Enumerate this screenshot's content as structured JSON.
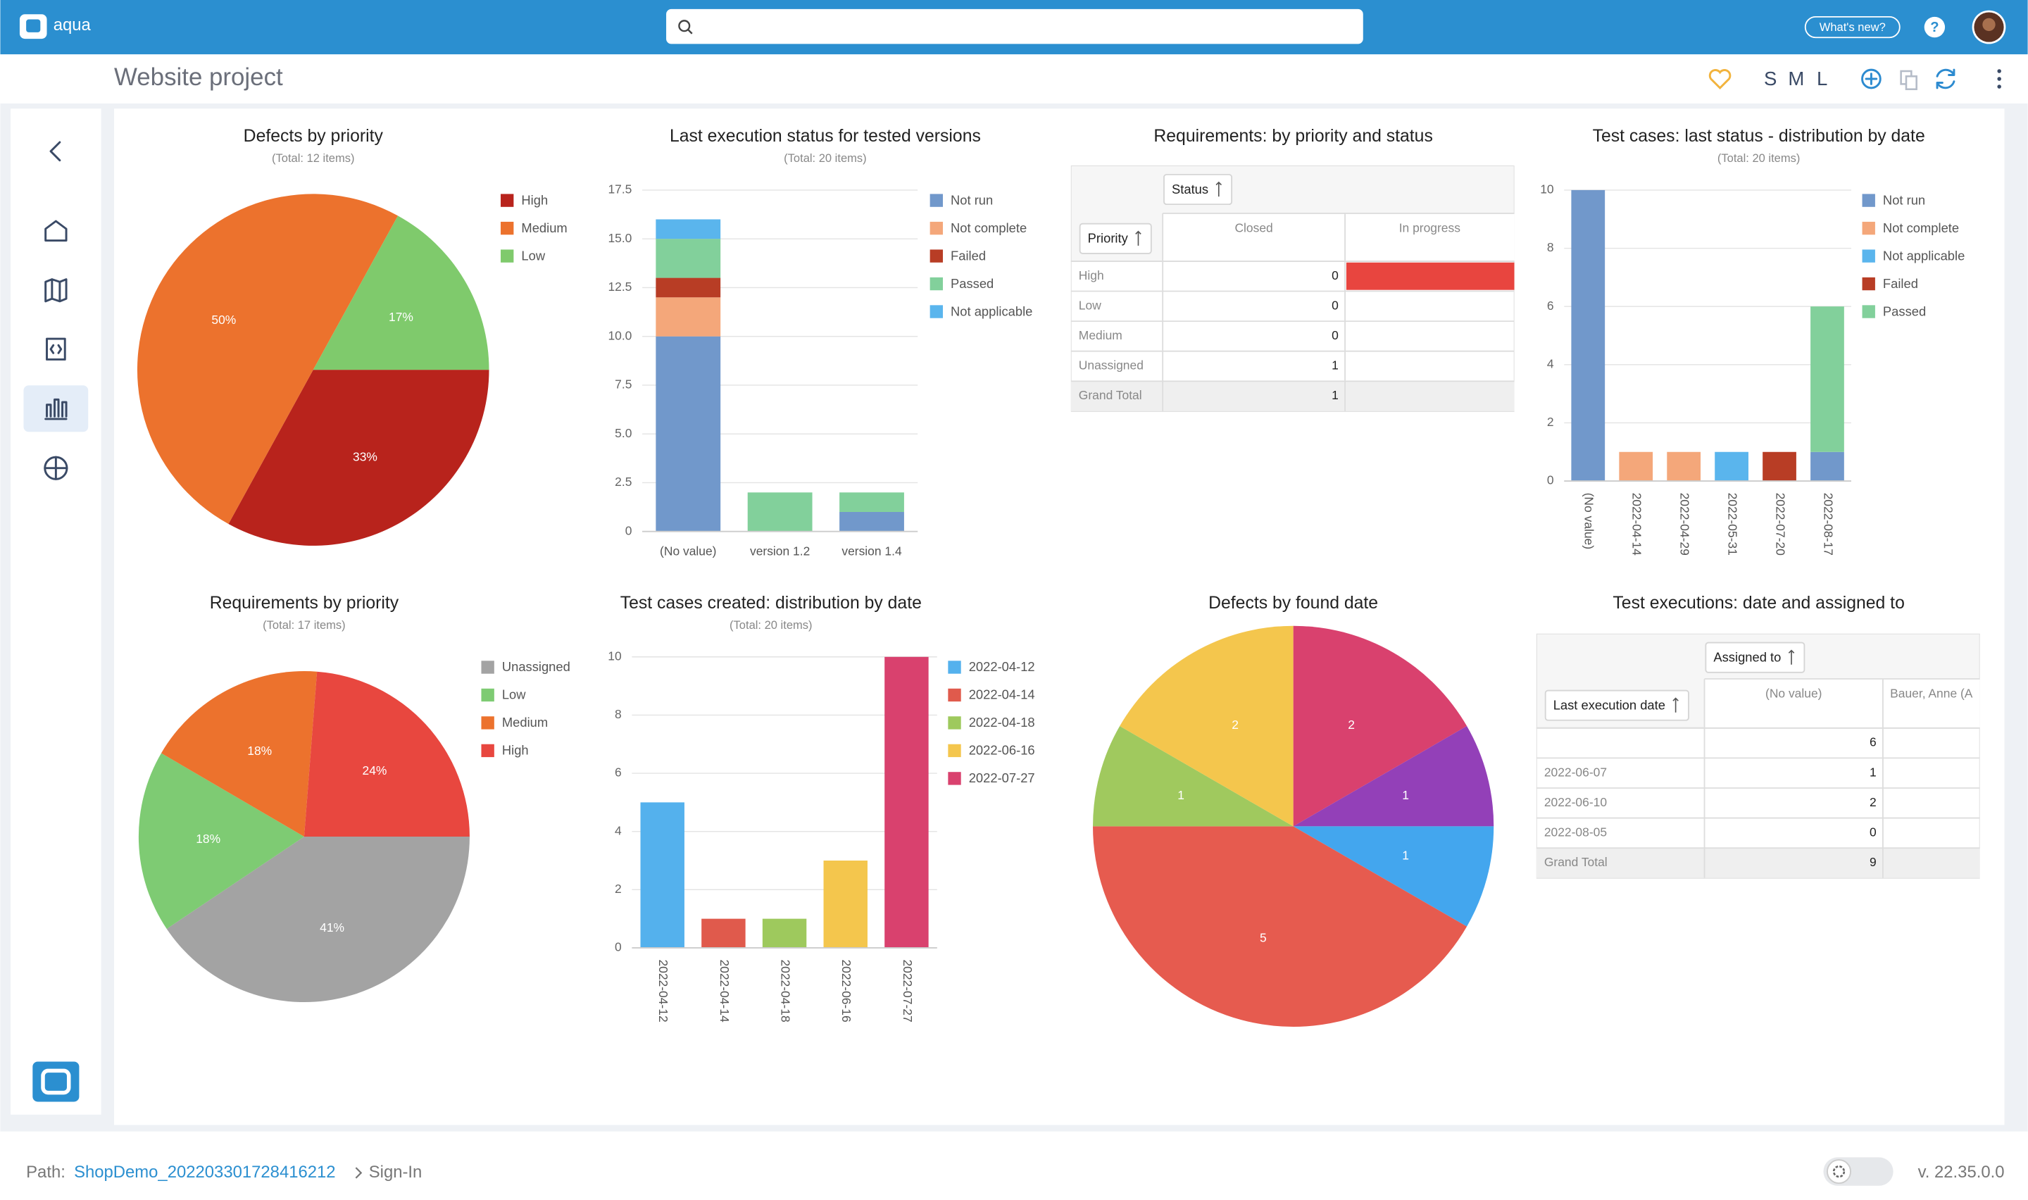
{
  "app": {
    "logo": "aqua",
    "whats_new": "What's new?",
    "help": "?",
    "project_title": "Website project",
    "sizes": [
      "S",
      "M",
      "L"
    ],
    "path_label": "Path:",
    "path_link": "ShopDemo_202203301728416212",
    "path_tail": "Sign-In",
    "version": "v. 22.35.0.0"
  },
  "chart_data": [
    {
      "type": "pie",
      "title": "Defects by priority",
      "subtitle": "(Total: 12 items)",
      "categories": [
        "High",
        "Medium",
        "Low"
      ],
      "values": [
        33,
        50,
        17
      ],
      "value_labels": [
        "33%",
        "50%",
        "17%"
      ],
      "colors": [
        "#b8231c",
        "#ec722d",
        "#7fca6c"
      ],
      "legend": "right"
    },
    {
      "type": "bar",
      "stacked": true,
      "title": "Last execution status for tested versions",
      "subtitle": "(Total: 20 items)",
      "categories": [
        "(No value)",
        "version 1.2",
        "version 1.4"
      ],
      "series": [
        {
          "name": "Not run",
          "color": "#7198cb",
          "values": [
            10,
            0,
            1
          ]
        },
        {
          "name": "Not complete",
          "color": "#f4a77a",
          "values": [
            2,
            0,
            0
          ]
        },
        {
          "name": "Failed",
          "color": "#b83d25",
          "values": [
            1,
            0,
            0
          ]
        },
        {
          "name": "Passed",
          "color": "#82d09b",
          "values": [
            2,
            2,
            1
          ]
        },
        {
          "name": "Not applicable",
          "color": "#5ab5ed",
          "values": [
            1,
            0,
            0
          ]
        }
      ],
      "ylim": [
        0,
        17.5
      ],
      "yticks": [
        0,
        2.5,
        {
          "value": 5,
          "label": "5.0"
        },
        7.5,
        {
          "value": 10,
          "label": "10.0"
        },
        12.5,
        {
          "value": 15,
          "label": "15.0"
        },
        17.5
      ],
      "grid": true,
      "legend": "right"
    },
    {
      "type": "bar",
      "stacked": true,
      "title": "Test cases: last status - distribution by date",
      "subtitle": "(Total: 20 items)",
      "categories": [
        "(No value)",
        "2022-04-14",
        "2022-04-29",
        "2022-05-31",
        "2022-07-20",
        "2022-08-17"
      ],
      "series": [
        {
          "name": "Not run",
          "color": "#7198cb",
          "values": [
            10,
            0,
            0,
            0,
            0,
            1
          ]
        },
        {
          "name": "Not complete",
          "color": "#f4a77a",
          "values": [
            0,
            1,
            1,
            0,
            0,
            0
          ]
        },
        {
          "name": "Not applicable",
          "color": "#5ab5ed",
          "values": [
            0,
            0,
            0,
            1,
            0,
            0
          ]
        },
        {
          "name": "Failed",
          "color": "#b83d25",
          "values": [
            0,
            0,
            0,
            0,
            1,
            0
          ]
        },
        {
          "name": "Passed",
          "color": "#82d09b",
          "values": [
            0,
            0,
            0,
            0,
            0,
            5
          ]
        }
      ],
      "ylim": [
        0,
        10
      ],
      "yticks": [
        0,
        2,
        4,
        6,
        8,
        10
      ],
      "grid": true,
      "legend": "right"
    },
    {
      "type": "pie",
      "title": "Requirements by priority",
      "subtitle": "(Total: 17 items)",
      "categories": [
        "Unassigned",
        "Low",
        "Medium",
        "High"
      ],
      "values": [
        41,
        18,
        18,
        24
      ],
      "value_labels": [
        "41%",
        "18%",
        "18%",
        "24%"
      ],
      "colors": [
        "#a3a3a3",
        "#7ecb73",
        "#ec722d",
        "#e8473f"
      ],
      "legend": "right"
    },
    {
      "type": "bar",
      "title": "Test cases created: distribution by date",
      "subtitle": "(Total: 20 items)",
      "categories": [
        "2022-04-12",
        "2022-04-14",
        "2022-04-18",
        "2022-06-16",
        "2022-07-27"
      ],
      "values": [
        5,
        1,
        1,
        3,
        10
      ],
      "colors": [
        "#54b1ed",
        "#e05a4c",
        "#9ec95d",
        "#f4c64d",
        "#d9416e"
      ],
      "ylim": [
        0,
        10
      ],
      "yticks": [
        0,
        2,
        4,
        6,
        8,
        10
      ],
      "grid": true,
      "legend": "right"
    },
    {
      "type": "pie",
      "title": "Defects by found date",
      "values": [
        2,
        1,
        1,
        5,
        1,
        2
      ],
      "colors": [
        "#d9416e",
        "#9340b8",
        "#43a6ee",
        "#e65b4f",
        "#a0c95e",
        "#f4c64d"
      ]
    }
  ],
  "tables": [
    {
      "title": "Requirements: by priority and status",
      "column_field": "Status",
      "row_field": "Priority",
      "columns": [
        "Closed",
        "In progress"
      ],
      "rows": [
        {
          "label": "High",
          "values": [
            0
          ]
        },
        {
          "label": "Low",
          "values": [
            0
          ]
        },
        {
          "label": "Medium",
          "values": [
            0
          ]
        },
        {
          "label": "Unassigned",
          "values": [
            1
          ]
        },
        {
          "label": "Grand Total",
          "values": [
            1
          ]
        }
      ]
    },
    {
      "title": "Test executions: date and assigned to",
      "column_field": "Assigned to",
      "row_field": "Last execution date",
      "columns": [
        "(No value)",
        "Bauer, Anne (A"
      ],
      "rows": [
        {
          "label": null,
          "values": [
            6
          ]
        },
        {
          "label": "2022-06-07",
          "values": [
            1
          ]
        },
        {
          "label": "2022-06-10",
          "values": [
            2
          ]
        },
        {
          "label": "2022-08-05",
          "values": [
            0
          ]
        },
        {
          "label": "Grand Total",
          "values": [
            9
          ]
        }
      ]
    }
  ]
}
